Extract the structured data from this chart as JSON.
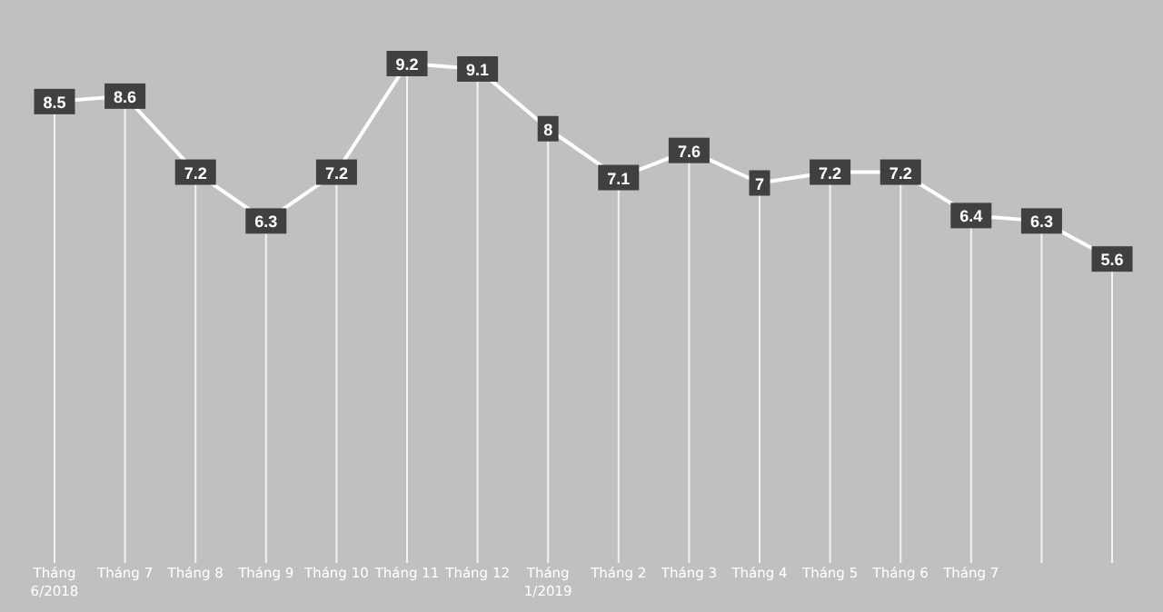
{
  "chart_data": {
    "type": "line",
    "categories": [
      "Tháng 6/2018",
      "Tháng 7",
      "Tháng 8",
      "Tháng 9",
      "Tháng 10",
      "Tháng 11",
      "Tháng 12",
      "Tháng 1/2019",
      "Tháng 2",
      "Tháng 3",
      "Tháng 4",
      "Tháng 5",
      "Tháng 6",
      "Tháng 7",
      null,
      null
    ],
    "series": [
      {
        "color": "#ffffff",
        "values": [
          8.5,
          8.6,
          7.2,
          6.3,
          7.2,
          9.2,
          9.1,
          8,
          7.1,
          7.6,
          7,
          7.2,
          7.2,
          6.4,
          6.3,
          5.6
        ]
      }
    ],
    "data_labels": true,
    "grid": "x",
    "marker": "square",
    "line_style": "solid"
  }
}
